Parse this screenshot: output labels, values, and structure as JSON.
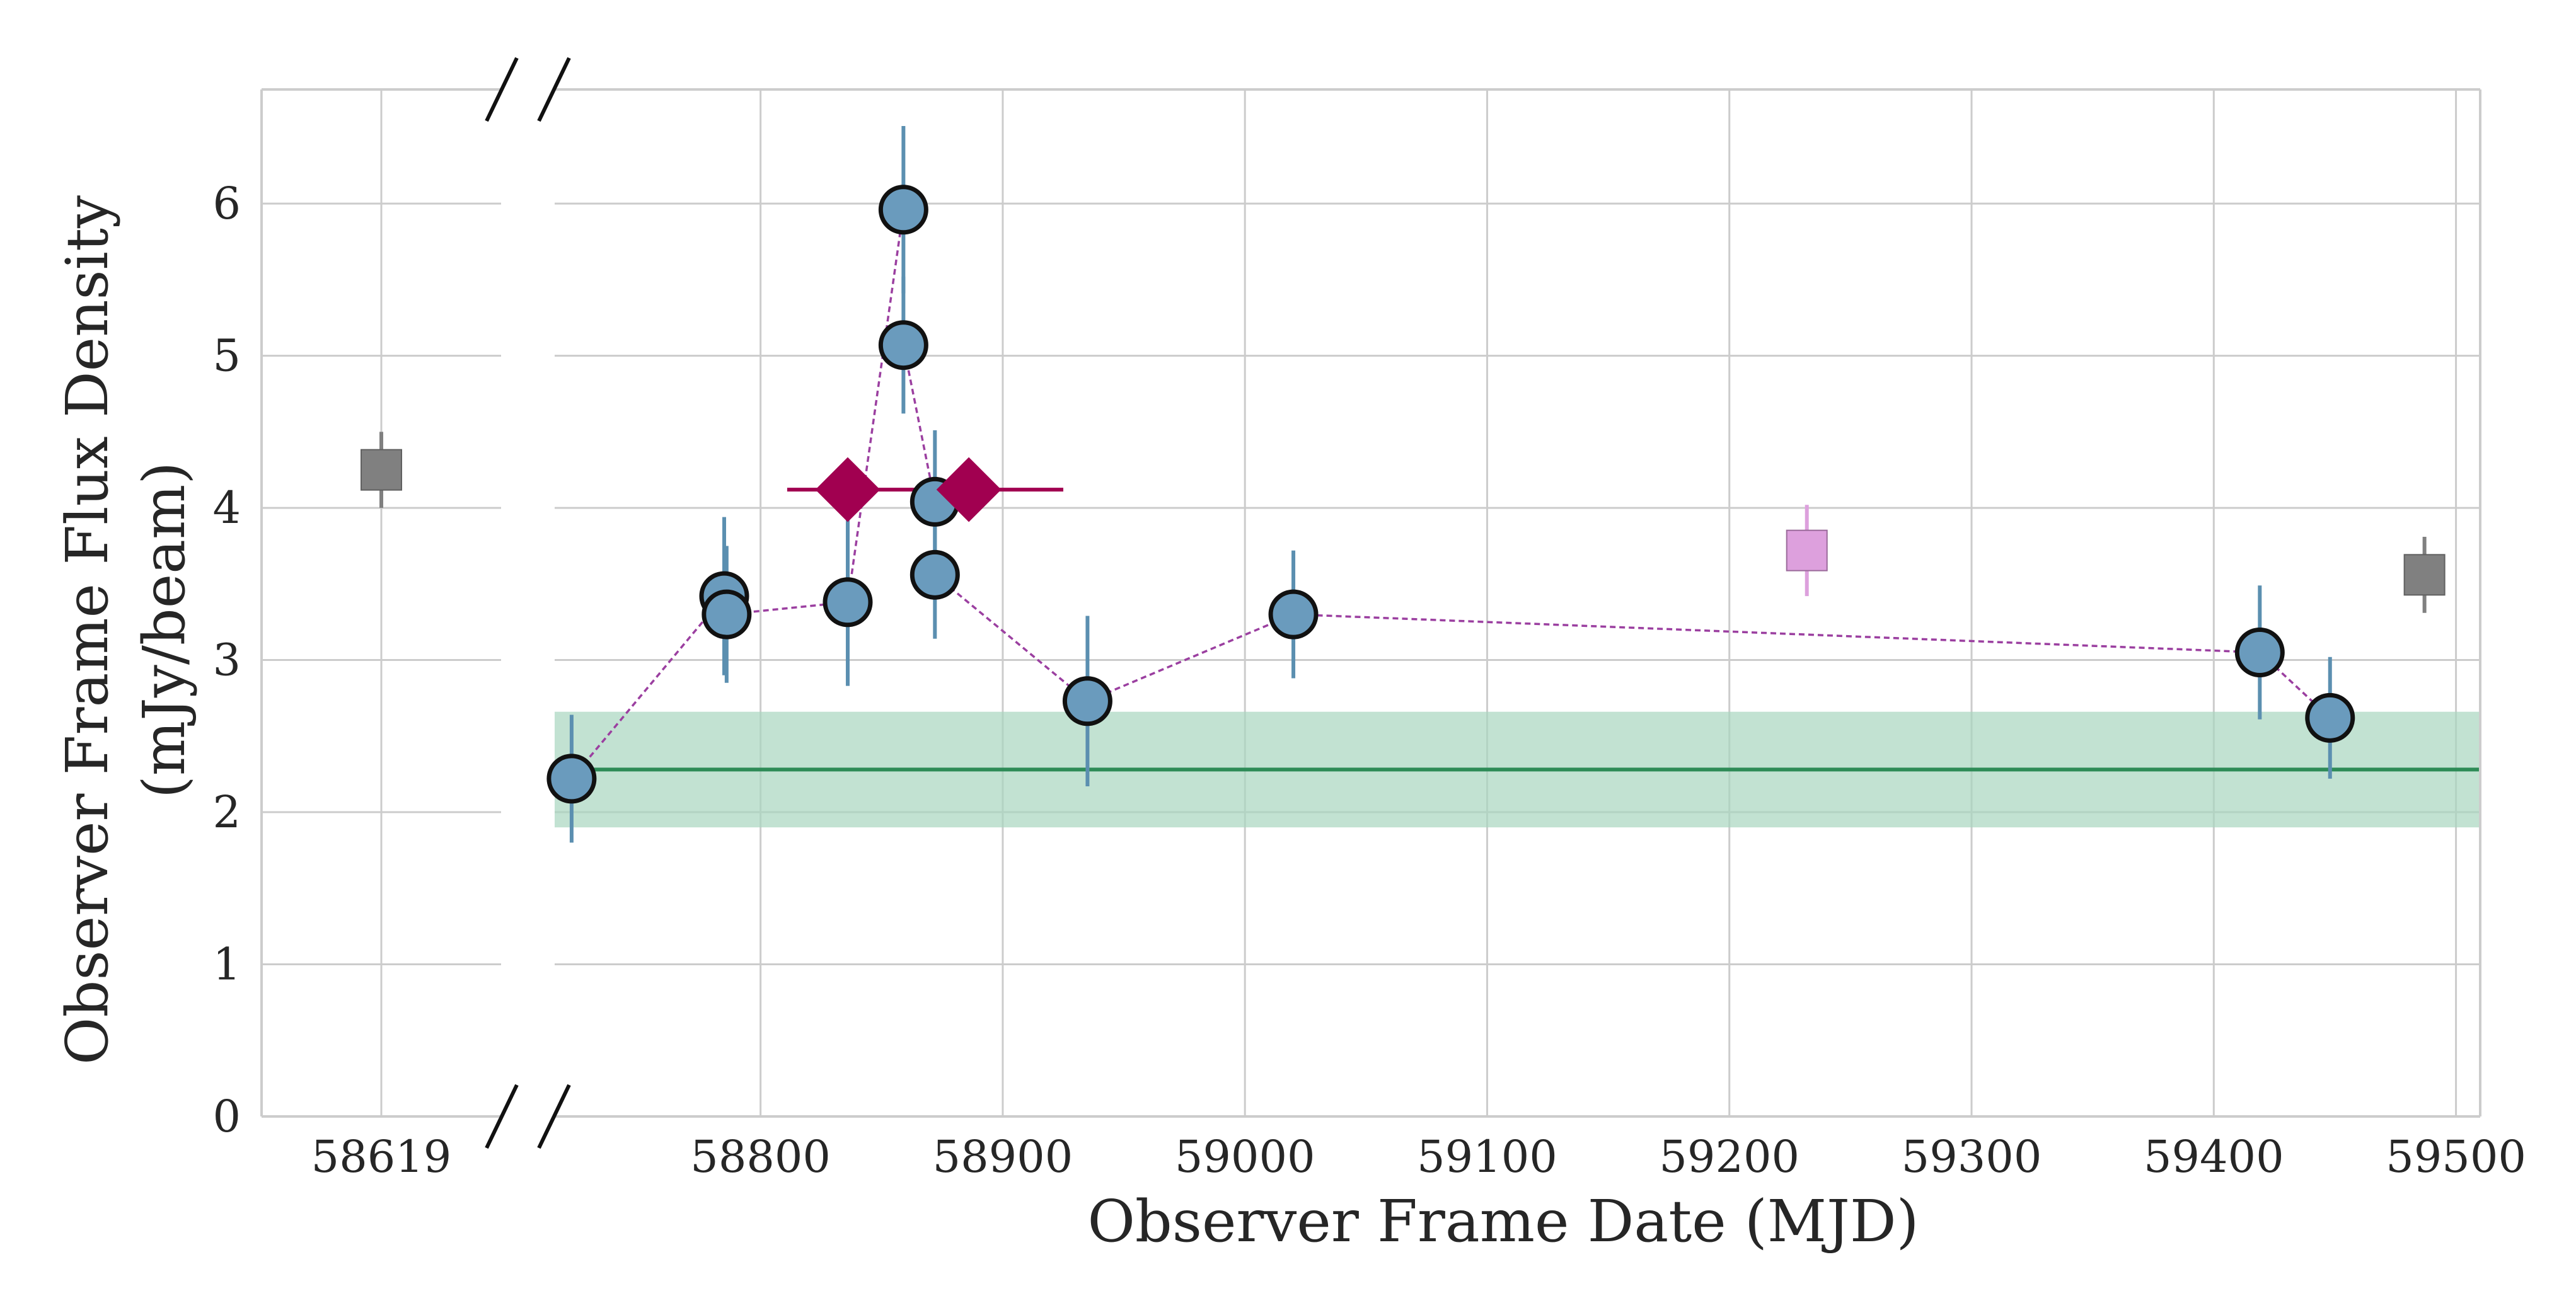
{
  "chart_data": {
    "type": "scatter",
    "xlabel": "Observer Frame Date (MJD)",
    "ylabel": [
      "Observer Frame Flux Density",
      "(mJy/beam)"
    ],
    "ylim": [
      0,
      6.75
    ],
    "yticks": [
      0,
      1,
      2,
      3,
      4,
      5,
      6
    ],
    "x_broken_axis": true,
    "left_panel": {
      "xlim": [
        58594,
        58644
      ],
      "xticks": [
        58619
      ]
    },
    "right_panel": {
      "xlim": [
        58715,
        59510
      ],
      "xticks": [
        58800,
        58900,
        59000,
        59100,
        59200,
        59300,
        59400,
        59500
      ]
    },
    "grid": true,
    "colors": {
      "circle_fill": "#6a9bbd",
      "circle_edge": "#111111",
      "errorbar": "#5b8fb0",
      "dashed_line": "#9b3fa0",
      "diamond": "#a10050",
      "square_gray": "#808080",
      "square_pink": "#dda0dd",
      "baseline": "#2e8b57",
      "baseline_band": "#a8d5bf"
    },
    "baseline": {
      "value": 2.28,
      "band": [
        1.9,
        2.66
      ]
    },
    "series": [
      {
        "marker": "circle",
        "connected": true,
        "points": [
          {
            "x": 58722,
            "y": 2.22,
            "yerr": 0.42
          },
          {
            "x": 58785,
            "y": 3.42,
            "yerr": 0.52
          },
          {
            "x": 58786,
            "y": 3.3,
            "yerr": 0.45
          },
          {
            "x": 58836,
            "y": 3.38,
            "yerr": 0.55
          },
          {
            "x": 58859,
            "y": 5.96,
            "yerr": 0.55
          },
          {
            "x": 58859,
            "y": 5.07,
            "yerr": 0.45
          },
          {
            "x": 58872,
            "y": 4.04,
            "yerr": 0.47
          },
          {
            "x": 58872,
            "y": 3.56,
            "yerr": 0.42
          },
          {
            "x": 58935,
            "y": 2.73,
            "yerr": 0.56
          },
          {
            "x": 59020,
            "y": 3.3,
            "yerr": 0.42
          },
          {
            "x": 59419,
            "y": 3.05,
            "yerr": 0.44
          },
          {
            "x": 59448,
            "y": 2.62,
            "yerr": 0.4
          }
        ]
      },
      {
        "marker": "diamond",
        "points": [
          {
            "x": 58836,
            "y": 4.12
          },
          {
            "x": 58886,
            "y": 4.12
          }
        ],
        "xerr_span": [
          58811,
          58925
        ]
      },
      {
        "marker": "square",
        "color": "gray",
        "points": [
          {
            "x": 58619,
            "y": 4.25,
            "yerr": 0.25
          },
          {
            "x": 59487,
            "y": 3.56,
            "yerr": 0.25
          }
        ]
      },
      {
        "marker": "square",
        "color": "pink",
        "points": [
          {
            "x": 59232,
            "y": 3.72,
            "yerr": 0.3
          }
        ]
      }
    ]
  }
}
